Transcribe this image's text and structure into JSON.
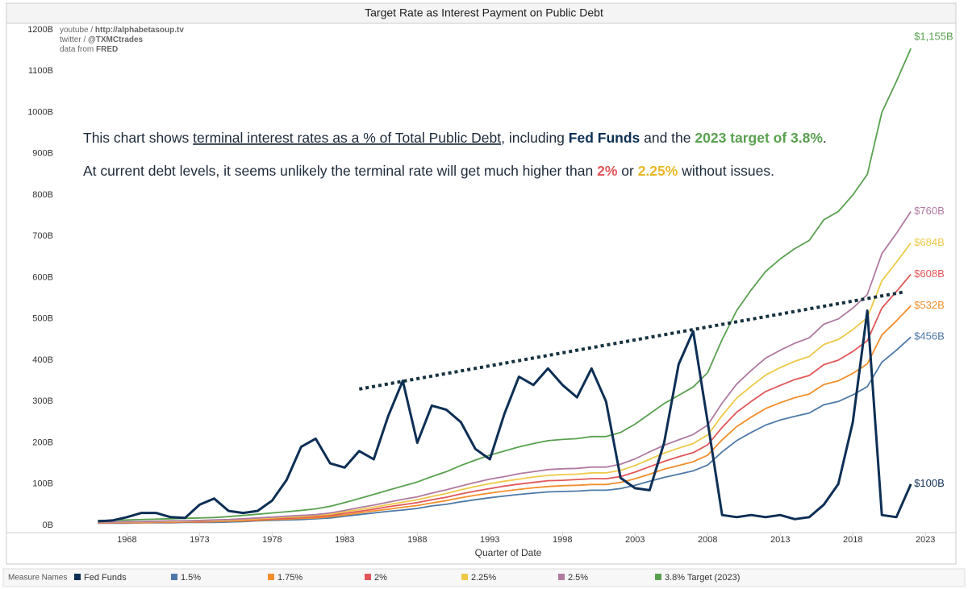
{
  "chart_data": {
    "type": "line",
    "title": "Target Rate as Interest Payment on Public Debt",
    "source_lines": [
      [
        "youtube / ",
        "http://alphabetasoup.tv"
      ],
      [
        "twitter / ",
        "@TXMCtrades"
      ],
      [
        "data from ",
        "FRED"
      ]
    ],
    "annotation_lines": [
      [
        {
          "text": "This chart shows "
        },
        {
          "text": "terminal interest rates as a % of Total Public Debt",
          "underline": true
        },
        {
          "text": ", including "
        },
        {
          "text": "Fed Funds",
          "bold": true,
          "color": "#0d2f55"
        },
        {
          "text": " and the "
        },
        {
          "text": "2023 target of 3.8%",
          "bold": true,
          "color": "#59a14f"
        },
        {
          "text": "."
        }
      ],
      [
        {
          "text": "At current debt levels, it seems unlikely the terminal rate will get much higher than "
        },
        {
          "text": "2%",
          "bold": true,
          "color": "#e15759"
        },
        {
          "text": " or "
        },
        {
          "text": "2.25%",
          "bold": true,
          "color": "#e8b825"
        },
        {
          "text": " without issues."
        }
      ]
    ],
    "x_label": "Quarter of Date",
    "legend_title": "Measure Names",
    "xlim": [
      1959.7,
      2025.1
    ],
    "xticks": [
      1968,
      1973,
      1978,
      1983,
      1988,
      1993,
      1998,
      2003,
      2008,
      2013,
      2018,
      2023
    ],
    "ylim": [
      0,
      1200
    ],
    "yticks": [
      {
        "value": 0,
        "label": "0B"
      },
      {
        "value": 100,
        "label": "100B"
      },
      {
        "value": 200,
        "label": "200B"
      },
      {
        "value": 300,
        "label": "300B"
      },
      {
        "value": 400,
        "label": "400B"
      },
      {
        "value": 500,
        "label": "500B"
      },
      {
        "value": 600,
        "label": "600B"
      },
      {
        "value": 700,
        "label": "700B"
      },
      {
        "value": 800,
        "label": "800B"
      },
      {
        "value": 900,
        "label": "900B"
      },
      {
        "value": 1000,
        "label": "1000B"
      },
      {
        "value": 1100,
        "label": "1100B"
      },
      {
        "value": 1200,
        "label": "1200B"
      }
    ],
    "x": [
      1966,
      1967,
      1968,
      1969,
      1970,
      1971,
      1972,
      1973,
      1974,
      1975,
      1976,
      1977,
      1978,
      1979,
      1980,
      1981,
      1982,
      1983,
      1984,
      1985,
      1986,
      1987,
      1988,
      1989,
      1990,
      1991,
      1992,
      1993,
      1994,
      1995,
      1996,
      1997,
      1998,
      1999,
      2000,
      2001,
      2002,
      2003,
      2004,
      2005,
      2006,
      2007,
      2008,
      2009,
      2010,
      2011,
      2012,
      2013,
      2014,
      2015,
      2016,
      2017,
      2018,
      2019,
      2020,
      2021,
      2022
    ],
    "series": [
      {
        "name": "1.5%",
        "color": "#4e79a7",
        "end_label": "$456B",
        "values": [
          5,
          5,
          5,
          6,
          6,
          6,
          7,
          7,
          7,
          8,
          9,
          11,
          12,
          13,
          14,
          16,
          18,
          22,
          26,
          30,
          34,
          37,
          41,
          47,
          51,
          57,
          62,
          67,
          71,
          75,
          78,
          81,
          82,
          83,
          85,
          85,
          89,
          97,
          107,
          116,
          124,
          132,
          146,
          178,
          205,
          225,
          243,
          255,
          264,
          272,
          292,
          300,
          316,
          336,
          395,
          424,
          456
        ]
      },
      {
        "name": "1.75%",
        "color": "#f28e2b",
        "end_label": "$532B",
        "values": [
          6,
          6,
          6,
          6,
          7,
          7,
          8,
          8,
          9,
          10,
          11,
          12,
          14,
          15,
          17,
          18,
          21,
          25,
          30,
          35,
          39,
          44,
          48,
          54,
          60,
          67,
          73,
          78,
          83,
          87,
          91,
          94,
          96,
          97,
          99,
          99,
          104,
          113,
          124,
          136,
          145,
          154,
          170,
          207,
          239,
          262,
          283,
          297,
          309,
          318,
          341,
          350,
          368,
          391,
          461,
          495,
          532
        ]
      },
      {
        "name": "2%",
        "color": "#e15759",
        "end_label": "$608B",
        "values": [
          6,
          6,
          7,
          7,
          8,
          8,
          9,
          9,
          10,
          11,
          13,
          14,
          16,
          17,
          19,
          21,
          24,
          29,
          34,
          39,
          45,
          50,
          55,
          62,
          68,
          76,
          83,
          89,
          95,
          100,
          104,
          108,
          109,
          111,
          113,
          113,
          118,
          129,
          142,
          155,
          166,
          176,
          195,
          237,
          274,
          300,
          324,
          339,
          353,
          363,
          389,
          400,
          421,
          447,
          526,
          566,
          608
        ]
      },
      {
        "name": "2.25%",
        "color": "#edc948",
        "end_label": "$684B",
        "values": [
          7,
          7,
          8,
          8,
          9,
          9,
          10,
          11,
          11,
          12,
          14,
          16,
          18,
          20,
          21,
          24,
          27,
          33,
          38,
          44,
          50,
          56,
          62,
          70,
          77,
          86,
          94,
          101,
          107,
          112,
          117,
          121,
          123,
          124,
          127,
          127,
          133,
          145,
          160,
          175,
          187,
          198,
          219,
          266,
          308,
          337,
          364,
          382,
          397,
          409,
          438,
          450,
          474,
          503,
          592,
          637,
          684
        ]
      },
      {
        "name": "2.5%",
        "color": "#b07aa1",
        "end_label": "$760B",
        "values": [
          8,
          8,
          9,
          9,
          10,
          11,
          11,
          12,
          13,
          14,
          16,
          18,
          20,
          22,
          24,
          26,
          30,
          36,
          43,
          49,
          56,
          63,
          69,
          78,
          86,
          95,
          104,
          112,
          118,
          125,
          130,
          135,
          137,
          138,
          141,
          141,
          148,
          161,
          178,
          194,
          207,
          220,
          243,
          296,
          342,
          375,
          405,
          424,
          441,
          454,
          487,
          500,
          526,
          559,
          658,
          707,
          760
        ]
      },
      {
        "name": "3.8% Target (2023)",
        "color": "#59a14f",
        "end_label": "$1,155B",
        "values": [
          12,
          12,
          13,
          14,
          15,
          16,
          17,
          18,
          19,
          21,
          24,
          27,
          30,
          33,
          36,
          40,
          46,
          55,
          65,
          75,
          85,
          95,
          105,
          118,
          130,
          145,
          158,
          170,
          180,
          190,
          198,
          205,
          208,
          210,
          215,
          215,
          225,
          245,
          270,
          295,
          315,
          335,
          370,
          450,
          520,
          570,
          615,
          645,
          670,
          690,
          740,
          760,
          800,
          850,
          1000,
          1075,
          1155
        ]
      },
      {
        "name": "Fed Funds",
        "color": "#0d2f55",
        "end_label": "$100B",
        "values": [
          10,
          12,
          20,
          30,
          30,
          20,
          18,
          50,
          65,
          35,
          30,
          35,
          60,
          110,
          190,
          210,
          150,
          140,
          180,
          160,
          265,
          350,
          200,
          290,
          280,
          250,
          185,
          160,
          270,
          360,
          340,
          380,
          340,
          310,
          380,
          300,
          115,
          90,
          85,
          200,
          390,
          470,
          250,
          25,
          20,
          25,
          20,
          25,
          15,
          20,
          50,
          100,
          250,
          520,
          25,
          20,
          100
        ]
      }
    ],
    "legend_order": [
      6,
      0,
      1,
      2,
      3,
      4,
      5
    ],
    "trendline": {
      "x": [
        1984,
        2021.5
      ],
      "y": [
        330,
        565
      ],
      "color": "#16313f"
    }
  }
}
